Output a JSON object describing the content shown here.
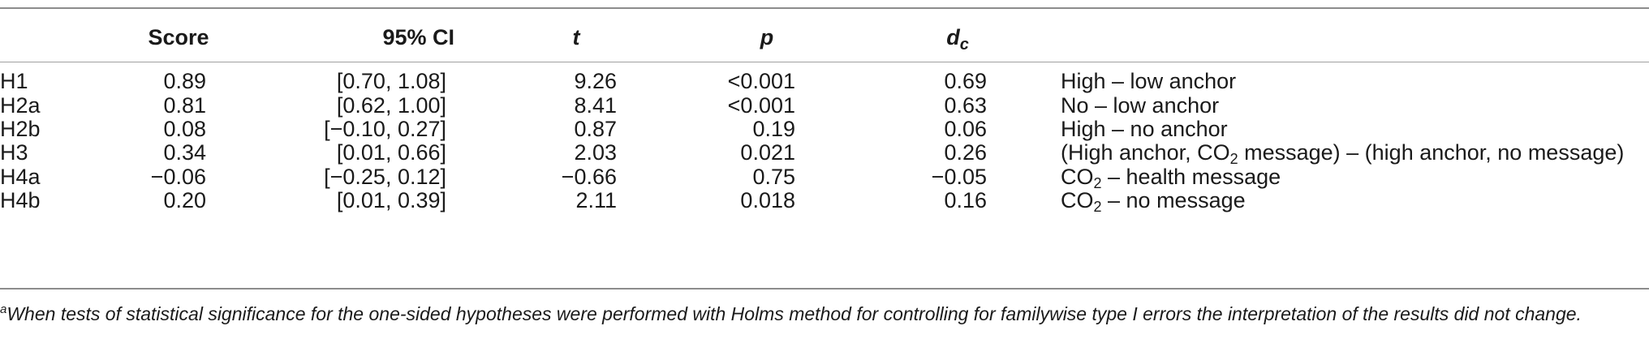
{
  "table": {
    "headers": {
      "score": "Score",
      "ci": "95% CI",
      "t": "t",
      "p": "p",
      "d": "d",
      "d_sub": "c"
    },
    "rows": [
      {
        "label": "H1",
        "score": "0.89",
        "ci": "[0.70, 1.08]",
        "t": "9.26",
        "p": "<0.001",
        "d": "0.69",
        "desc_pre": "High – low anchor",
        "desc_sub": "",
        "desc_post": ""
      },
      {
        "label": "H2a",
        "score": "0.81",
        "ci": "[0.62, 1.00]",
        "t": "8.41",
        "p": "<0.001",
        "d": "0.63",
        "desc_pre": "No – low anchor",
        "desc_sub": "",
        "desc_post": ""
      },
      {
        "label": "H2b",
        "score": "0.08",
        "ci": "[−0.10, 0.27]",
        "t": "0.87",
        "p": "0.19",
        "d": "0.06",
        "desc_pre": "High – no anchor",
        "desc_sub": "",
        "desc_post": ""
      },
      {
        "label": "H3",
        "score": "0.34",
        "ci": "[0.01, 0.66]",
        "t": "2.03",
        "p": "0.021",
        "d": "0.26",
        "desc_pre": "(High anchor, CO",
        "desc_sub": "2",
        "desc_post": " message) – (high anchor, no message)"
      },
      {
        "label": "H4a",
        "score": "−0.06",
        "ci": "[−0.25, 0.12]",
        "t": "−0.66",
        "p": "0.75",
        "d": "−0.05",
        "desc_pre": "CO",
        "desc_sub": "2",
        "desc_post": " – health message"
      },
      {
        "label": "H4b",
        "score": "0.20",
        "ci": "[0.01, 0.39]",
        "t": "2.11",
        "p": "0.018",
        "d": "0.16",
        "desc_pre": "CO",
        "desc_sub": "2",
        "desc_post": " – no message"
      }
    ]
  },
  "footnote": {
    "marker": "a",
    "text": "When tests of statistical significance for the one-sided hypotheses were performed with Holms method for controlling for familywise type I errors the interpretation of the results did not change."
  }
}
